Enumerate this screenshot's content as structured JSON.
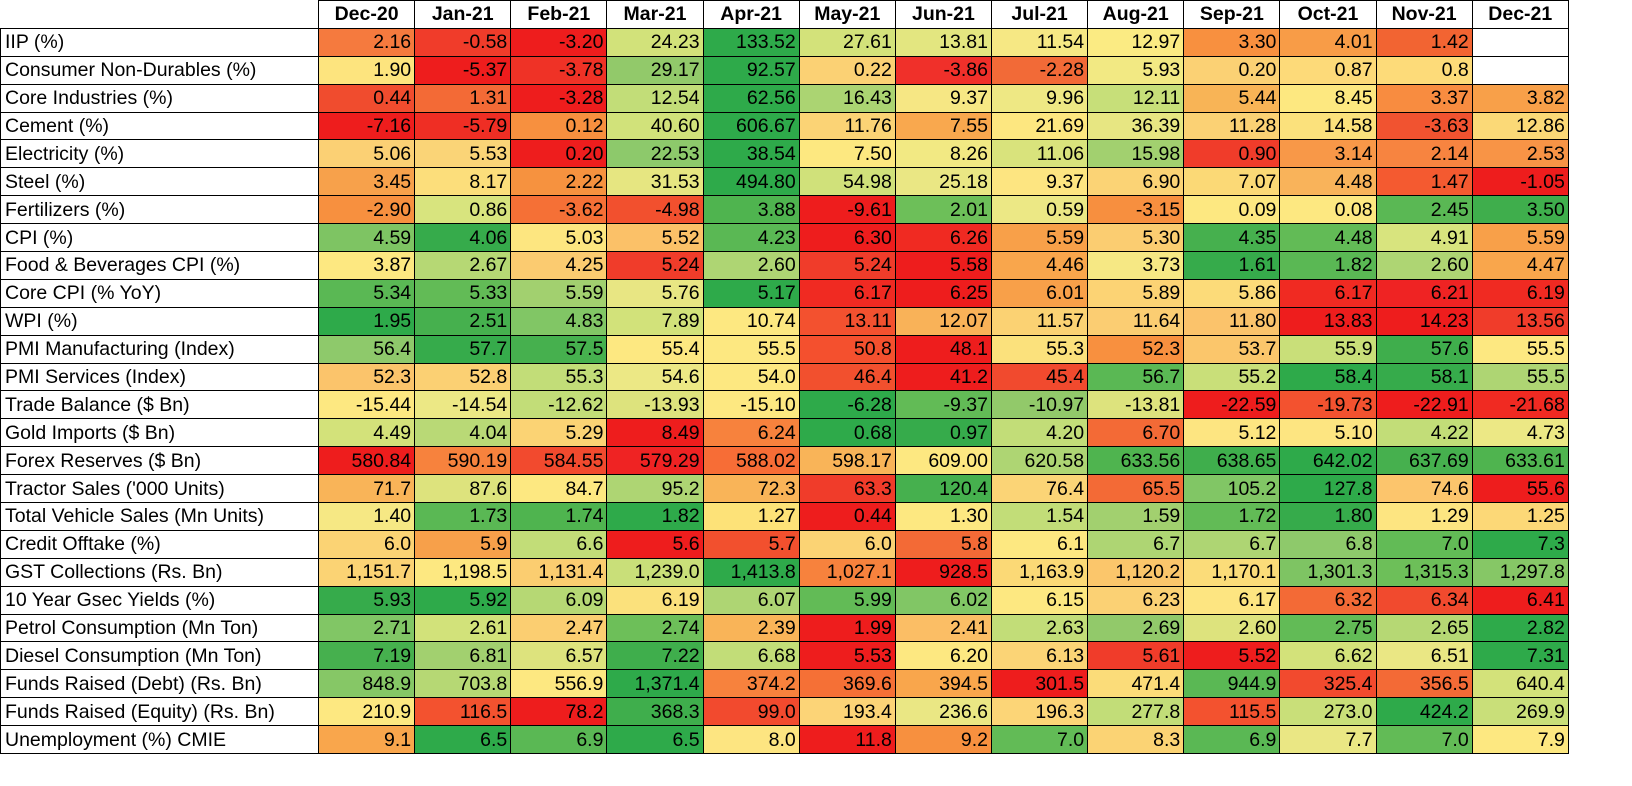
{
  "chart_data": {
    "type": "heatmap",
    "columns": [
      "Dec-20",
      "Jan-21",
      "Feb-21",
      "Mar-21",
      "Apr-21",
      "May-21",
      "Jun-21",
      "Jul-21",
      "Aug-21",
      "Sep-21",
      "Oct-21",
      "Nov-21",
      "Dec-21"
    ],
    "rows": [
      {
        "label": "IIP (%)",
        "values": [
          "2.16",
          "-0.58",
          "-3.20",
          "24.23",
          "133.52",
          "27.61",
          "13.81",
          "11.54",
          "12.97",
          "3.30",
          "4.01",
          "1.42",
          ""
        ],
        "colors": [
          "#f57a3e",
          "#f03c2a",
          "#ee1d1d",
          "#d2e27a",
          "#2eaa4a",
          "#d3e27a",
          "#e3e680",
          "#f6e884",
          "#fbeb83",
          "#f8903f",
          "#f89c47",
          "#f26432",
          "#ffffff"
        ]
      },
      {
        "label": "Consumer Non-Durables (%)",
        "values": [
          "1.90",
          "-5.37",
          "-3.78",
          "29.17",
          "92.57",
          "0.22",
          "-3.86",
          "-2.28",
          "5.93",
          "0.20",
          "0.87",
          "0.8",
          ""
        ],
        "colors": [
          "#fde47e",
          "#ee1d1d",
          "#ef3226",
          "#92c96a",
          "#2eaa4a",
          "#fbd174",
          "#f0302a",
          "#f26a37",
          "#f2e983",
          "#fbd174",
          "#fdda79",
          "#fddb79",
          "#ffffff"
        ]
      },
      {
        "label": "Core Industries (%)",
        "values": [
          "0.44",
          "1.31",
          "-3.28",
          "12.54",
          "62.56",
          "16.43",
          "9.37",
          "9.96",
          "12.11",
          "5.44",
          "8.45",
          "3.37",
          "3.82"
        ],
        "colors": [
          "#f04c2e",
          "#f36a36",
          "#ee1d1d",
          "#c2dd78",
          "#2eaa4a",
          "#abd472",
          "#f6e784",
          "#eee884",
          "#c7df79",
          "#f8b456",
          "#fde880",
          "#f88c40",
          "#f8a049"
        ]
      },
      {
        "label": "Cement (%)",
        "values": [
          "-7.16",
          "-5.79",
          "0.12",
          "40.60",
          "606.67",
          "11.76",
          "7.55",
          "21.69",
          "36.39",
          "11.28",
          "14.58",
          "-3.63",
          "12.86"
        ],
        "colors": [
          "#ee1d1d",
          "#ef2e24",
          "#f7903f",
          "#d1e27a",
          "#2eaa4a",
          "#fbd375",
          "#f9a84e",
          "#fde780",
          "#e7e682",
          "#fbd174",
          "#fbe17c",
          "#f15330",
          "#fbd977"
        ]
      },
      {
        "label": "Electricity (%)",
        "values": [
          "5.06",
          "5.53",
          "0.20",
          "22.53",
          "38.54",
          "7.50",
          "8.26",
          "11.06",
          "15.98",
          "0.90",
          "3.14",
          "2.14",
          "2.53"
        ],
        "colors": [
          "#fbd074",
          "#fad477",
          "#ee1d1d",
          "#8dc96b",
          "#2eaa4a",
          "#fde880",
          "#f2e983",
          "#d9e37c",
          "#a2d06f",
          "#f03c2a",
          "#f89848",
          "#f78440",
          "#f89446"
        ]
      },
      {
        "label": "Steel (%)",
        "values": [
          "3.45",
          "8.17",
          "2.22",
          "31.53",
          "494.80",
          "54.98",
          "25.18",
          "9.37",
          "6.90",
          "7.07",
          "4.48",
          "1.47",
          "-1.05"
        ],
        "colors": [
          "#f7a14b",
          "#fcde7b",
          "#f6923f",
          "#e6e681",
          "#2eaa4a",
          "#d0e17a",
          "#eae784",
          "#fde581",
          "#fbd375",
          "#fbd976",
          "#f9b35a",
          "#f45a30",
          "#ee1d1d"
        ]
      },
      {
        "label": "Fertilizers (%)",
        "values": [
          "-2.90",
          "0.86",
          "-3.62",
          "-4.98",
          "3.88",
          "-9.61",
          "2.01",
          "0.59",
          "-3.15",
          "0.09",
          "0.08",
          "2.45",
          "3.50"
        ],
        "colors": [
          "#f7903f",
          "#d8e47e",
          "#f57036",
          "#f2502e",
          "#4fb44f",
          "#ee1d1d",
          "#6dbf59",
          "#ece885",
          "#f78f3f",
          "#fde881",
          "#fde881",
          "#5ab854",
          "#3fae4c"
        ]
      },
      {
        "label": "CPI (%)",
        "values": [
          "4.59",
          "4.06",
          "5.03",
          "5.52",
          "4.23",
          "6.30",
          "6.26",
          "5.59",
          "5.30",
          "4.35",
          "4.48",
          "4.91",
          "5.59"
        ],
        "colors": [
          "#7ec463",
          "#36ab4b",
          "#fde680",
          "#fbc168",
          "#5ab854",
          "#ee1d1d",
          "#f02a22",
          "#f8a049",
          "#fbcd71",
          "#46b04e",
          "#62bb56",
          "#d8e47e",
          "#f8a049"
        ]
      },
      {
        "label": "Food & Beverages CPI (%)",
        "values": [
          "3.87",
          "2.67",
          "4.25",
          "5.24",
          "2.60",
          "5.24",
          "5.58",
          "4.46",
          "3.73",
          "1.61",
          "1.82",
          "2.60",
          "4.47"
        ],
        "colors": [
          "#fde881",
          "#b6d874",
          "#fbcb70",
          "#f03c2a",
          "#aed573",
          "#f03c2a",
          "#ee1d1d",
          "#f9a64c",
          "#f6e884",
          "#36ab4b",
          "#5ab854",
          "#aed573",
          "#f9a64c"
        ]
      },
      {
        "label": "Core CPI (% YoY)",
        "values": [
          "5.34",
          "5.33",
          "5.59",
          "5.76",
          "5.17",
          "6.17",
          "6.25",
          "6.01",
          "5.89",
          "5.86",
          "6.17",
          "6.21",
          "6.19"
        ],
        "colors": [
          "#5ab854",
          "#62bb56",
          "#a2d06f",
          "#e8e683",
          "#2eaa4a",
          "#f02a22",
          "#ee1d1d",
          "#f8a049",
          "#fcd374",
          "#fcdb79",
          "#f02a22",
          "#ef2323",
          "#f02a22"
        ]
      },
      {
        "label": "WPI (%)",
        "values": [
          "1.95",
          "2.51",
          "4.83",
          "7.89",
          "10.74",
          "13.11",
          "12.07",
          "11.57",
          "11.64",
          "11.80",
          "13.83",
          "14.23",
          "13.56"
        ],
        "colors": [
          "#2eaa4a",
          "#46b04e",
          "#81c665",
          "#d2e27a",
          "#fde881",
          "#f3512f",
          "#f9b258",
          "#fbd273",
          "#fbcd72",
          "#fbc36b",
          "#ee1d1d",
          "#ee1d1d",
          "#f03c2a"
        ]
      },
      {
        "label": "PMI Manufacturing (Index)",
        "values": [
          "56.4",
          "57.7",
          "57.5",
          "55.4",
          "55.5",
          "50.8",
          "48.1",
          "55.3",
          "52.3",
          "53.7",
          "55.9",
          "57.6",
          "55.5"
        ],
        "colors": [
          "#8ec96b",
          "#36ab4b",
          "#46b04e",
          "#fde881",
          "#fde881",
          "#f4502e",
          "#ee1d1d",
          "#fbe17c",
          "#f8903f",
          "#fbc66b",
          "#c9df79",
          "#3fae4c",
          "#fde881"
        ]
      },
      {
        "label": "PMI Services (Index)",
        "values": [
          "52.3",
          "52.8",
          "55.3",
          "54.6",
          "54.0",
          "46.4",
          "41.2",
          "45.4",
          "56.7",
          "55.2",
          "58.4",
          "58.1",
          "55.5"
        ],
        "colors": [
          "#fbc46b",
          "#fbd073",
          "#c2dd78",
          "#ece885",
          "#fde881",
          "#f2502e",
          "#ee1d1d",
          "#f14a2e",
          "#5ab854",
          "#c9df79",
          "#2eaa4a",
          "#36ab4b",
          "#aed573"
        ]
      },
      {
        "label": "Trade Balance ($ Bn)",
        "values": [
          "-15.44",
          "-14.54",
          "-12.62",
          "-13.93",
          "-15.10",
          "-6.28",
          "-9.37",
          "-10.97",
          "-13.81",
          "-22.59",
          "-19.73",
          "-22.91",
          "-21.68"
        ],
        "colors": [
          "#fde881",
          "#ece885",
          "#c2dd78",
          "#dde37d",
          "#fde881",
          "#2eaa4a",
          "#62bb56",
          "#92c96a",
          "#dde37d",
          "#ee1d1d",
          "#f3522f",
          "#ee1d1d",
          "#f02a22"
        ]
      },
      {
        "label": "Gold Imports ($ Bn)",
        "values": [
          "4.49",
          "4.04",
          "5.29",
          "8.49",
          "6.24",
          "0.68",
          "0.97",
          "4.20",
          "6.70",
          "5.12",
          "5.10",
          "4.22",
          "4.73"
        ],
        "colors": [
          "#d3e27a",
          "#b9d976",
          "#fbd374",
          "#ee1d1d",
          "#f7823d",
          "#2eaa4a",
          "#36ab4b",
          "#c2dd78",
          "#f36a36",
          "#fde581",
          "#fde581",
          "#c2dd78",
          "#ece885"
        ]
      },
      {
        "label": "Forex Reserves ($ Bn)",
        "values": [
          "580.84",
          "590.19",
          "584.55",
          "579.29",
          "588.02",
          "598.17",
          "609.00",
          "620.58",
          "633.56",
          "638.65",
          "642.02",
          "637.69",
          "633.61"
        ],
        "colors": [
          "#ee1d1d",
          "#f7823d",
          "#f24a2e",
          "#ef2323",
          "#f76d36",
          "#f9b458",
          "#fde881",
          "#aed573",
          "#4fb44f",
          "#3fae4c",
          "#2eaa4a",
          "#46b04e",
          "#4fb44f"
        ]
      },
      {
        "label": "Tractor Sales ('000 Units)",
        "values": [
          "71.7",
          "87.6",
          "84.7",
          "95.2",
          "72.3",
          "63.3",
          "120.4",
          "76.4",
          "65.5",
          "105.2",
          "127.8",
          "74.6",
          "55.6"
        ],
        "colors": [
          "#f9b458",
          "#dde37d",
          "#fde881",
          "#aed573",
          "#f9b458",
          "#f03c2a",
          "#46b04e",
          "#fbd476",
          "#f36a36",
          "#81c665",
          "#2eaa4a",
          "#fcc56c",
          "#ee1d1d"
        ]
      },
      {
        "label": "Total Vehicle Sales (Mn Units)",
        "values": [
          "1.40",
          "1.73",
          "1.74",
          "1.82",
          "1.27",
          "0.44",
          "1.30",
          "1.54",
          "1.59",
          "1.72",
          "1.80",
          "1.29",
          "1.25"
        ],
        "colors": [
          "#f6e884",
          "#5ab854",
          "#4fb44f",
          "#2eaa4a",
          "#fde278",
          "#ee1d1d",
          "#fde881",
          "#c2dd78",
          "#a2d06f",
          "#62bb56",
          "#36ab4b",
          "#fde581",
          "#fcd877"
        ]
      },
      {
        "label": "Credit Offtake (%)",
        "values": [
          "6.0",
          "5.9",
          "6.6",
          "5.6",
          "5.7",
          "6.0",
          "5.8",
          "6.1",
          "6.7",
          "6.7",
          "6.8",
          "7.0",
          "7.3"
        ],
        "colors": [
          "#fbd374",
          "#f7a04a",
          "#c2dd78",
          "#ee1d1d",
          "#f2502e",
          "#fbd374",
          "#f36a36",
          "#fde881",
          "#aed573",
          "#aed573",
          "#8ec96b",
          "#62bb56",
          "#2eaa4a"
        ]
      },
      {
        "label": "GST Collections (Rs. Bn)",
        "values": [
          "1,151.7",
          "1,198.5",
          "1,131.4",
          "1,239.0",
          "1,413.8",
          "1,027.1",
          "928.5",
          "1,163.9",
          "1,120.2",
          "1,170.1",
          "1,301.3",
          "1,315.3",
          "1,297.8"
        ],
        "colors": [
          "#fbd374",
          "#fde881",
          "#fbcd70",
          "#c9df79",
          "#2eaa4a",
          "#f7823d",
          "#ee1d1d",
          "#fbd976",
          "#fbc66b",
          "#fbdc79",
          "#7ec463",
          "#6dbf59",
          "#86c766"
        ]
      },
      {
        "label": "10 Year Gsec Yields (%)",
        "values": [
          "5.93",
          "5.92",
          "6.09",
          "6.19",
          "6.07",
          "5.99",
          "6.02",
          "6.15",
          "6.23",
          "6.17",
          "6.32",
          "6.34",
          "6.41"
        ],
        "colors": [
          "#36ab4b",
          "#2eaa4a",
          "#b6d874",
          "#fbe17c",
          "#aed573",
          "#62bb56",
          "#81c665",
          "#fde881",
          "#fbd174",
          "#fde581",
          "#f36a36",
          "#f14a2e",
          "#ee1d1d"
        ]
      },
      {
        "label": "Petrol Consumption (Mn Ton)",
        "values": [
          "2.71",
          "2.61",
          "2.47",
          "2.74",
          "2.39",
          "1.99",
          "2.41",
          "2.63",
          "2.69",
          "2.60",
          "2.75",
          "2.65",
          "2.82"
        ],
        "colors": [
          "#81c665",
          "#d2e27a",
          "#fbce71",
          "#6dbf59",
          "#f9b458",
          "#ee1d1d",
          "#fbbe65",
          "#c2dd78",
          "#92c96a",
          "#dde37d",
          "#62bb56",
          "#b6d874",
          "#2eaa4a"
        ]
      },
      {
        "label": "Diesel Consumption (Mn Ton)",
        "values": [
          "7.19",
          "6.81",
          "6.57",
          "7.22",
          "6.68",
          "5.53",
          "6.20",
          "6.13",
          "5.61",
          "5.52",
          "6.62",
          "6.51",
          "7.31"
        ],
        "colors": [
          "#46b04e",
          "#a2d06f",
          "#dde37d",
          "#3fae4c",
          "#c2dd78",
          "#ee1d1d",
          "#fde881",
          "#fbd476",
          "#f03c2a",
          "#ee1d1d",
          "#d3e27a",
          "#eae784",
          "#2eaa4a"
        ]
      },
      {
        "label": "Funds Raised (Debt) (Rs. Bn)",
        "values": [
          "848.9",
          "703.8",
          "556.9",
          "1,371.4",
          "374.2",
          "369.6",
          "394.5",
          "301.5",
          "471.4",
          "944.9",
          "325.4",
          "356.5",
          "640.4"
        ],
        "colors": [
          "#86c766",
          "#b6d874",
          "#fde881",
          "#2eaa4a",
          "#f7823d",
          "#f57036",
          "#f9a64c",
          "#ee1d1d",
          "#fbdc79",
          "#5ab854",
          "#f24a2e",
          "#f36a36",
          "#d3e27a"
        ]
      },
      {
        "label": "Funds Raised (Equity) (Rs. Bn)",
        "values": [
          "210.9",
          "116.5",
          "78.2",
          "368.3",
          "99.0",
          "193.4",
          "236.6",
          "196.3",
          "277.8",
          "115.5",
          "273.0",
          "424.2",
          "269.9"
        ],
        "colors": [
          "#fde881",
          "#f3522f",
          "#ee1d1d",
          "#3fae4c",
          "#f24a2e",
          "#fcd477",
          "#eae784",
          "#fcd577",
          "#c2dd78",
          "#f3522f",
          "#c9df79",
          "#2eaa4a",
          "#c9df79"
        ]
      },
      {
        "label": "Unemployment (%) CMIE",
        "values": [
          "9.1",
          "6.5",
          "6.9",
          "6.5",
          "8.0",
          "11.8",
          "9.2",
          "7.0",
          "8.3",
          "6.9",
          "7.7",
          "7.0",
          "7.9"
        ],
        "colors": [
          "#f9a64c",
          "#2eaa4a",
          "#5ab854",
          "#2eaa4a",
          "#fde581",
          "#ee1d1d",
          "#f7903f",
          "#62bb56",
          "#fbd374",
          "#5ab854",
          "#eae784",
          "#62bb56",
          "#fde881"
        ]
      }
    ]
  }
}
